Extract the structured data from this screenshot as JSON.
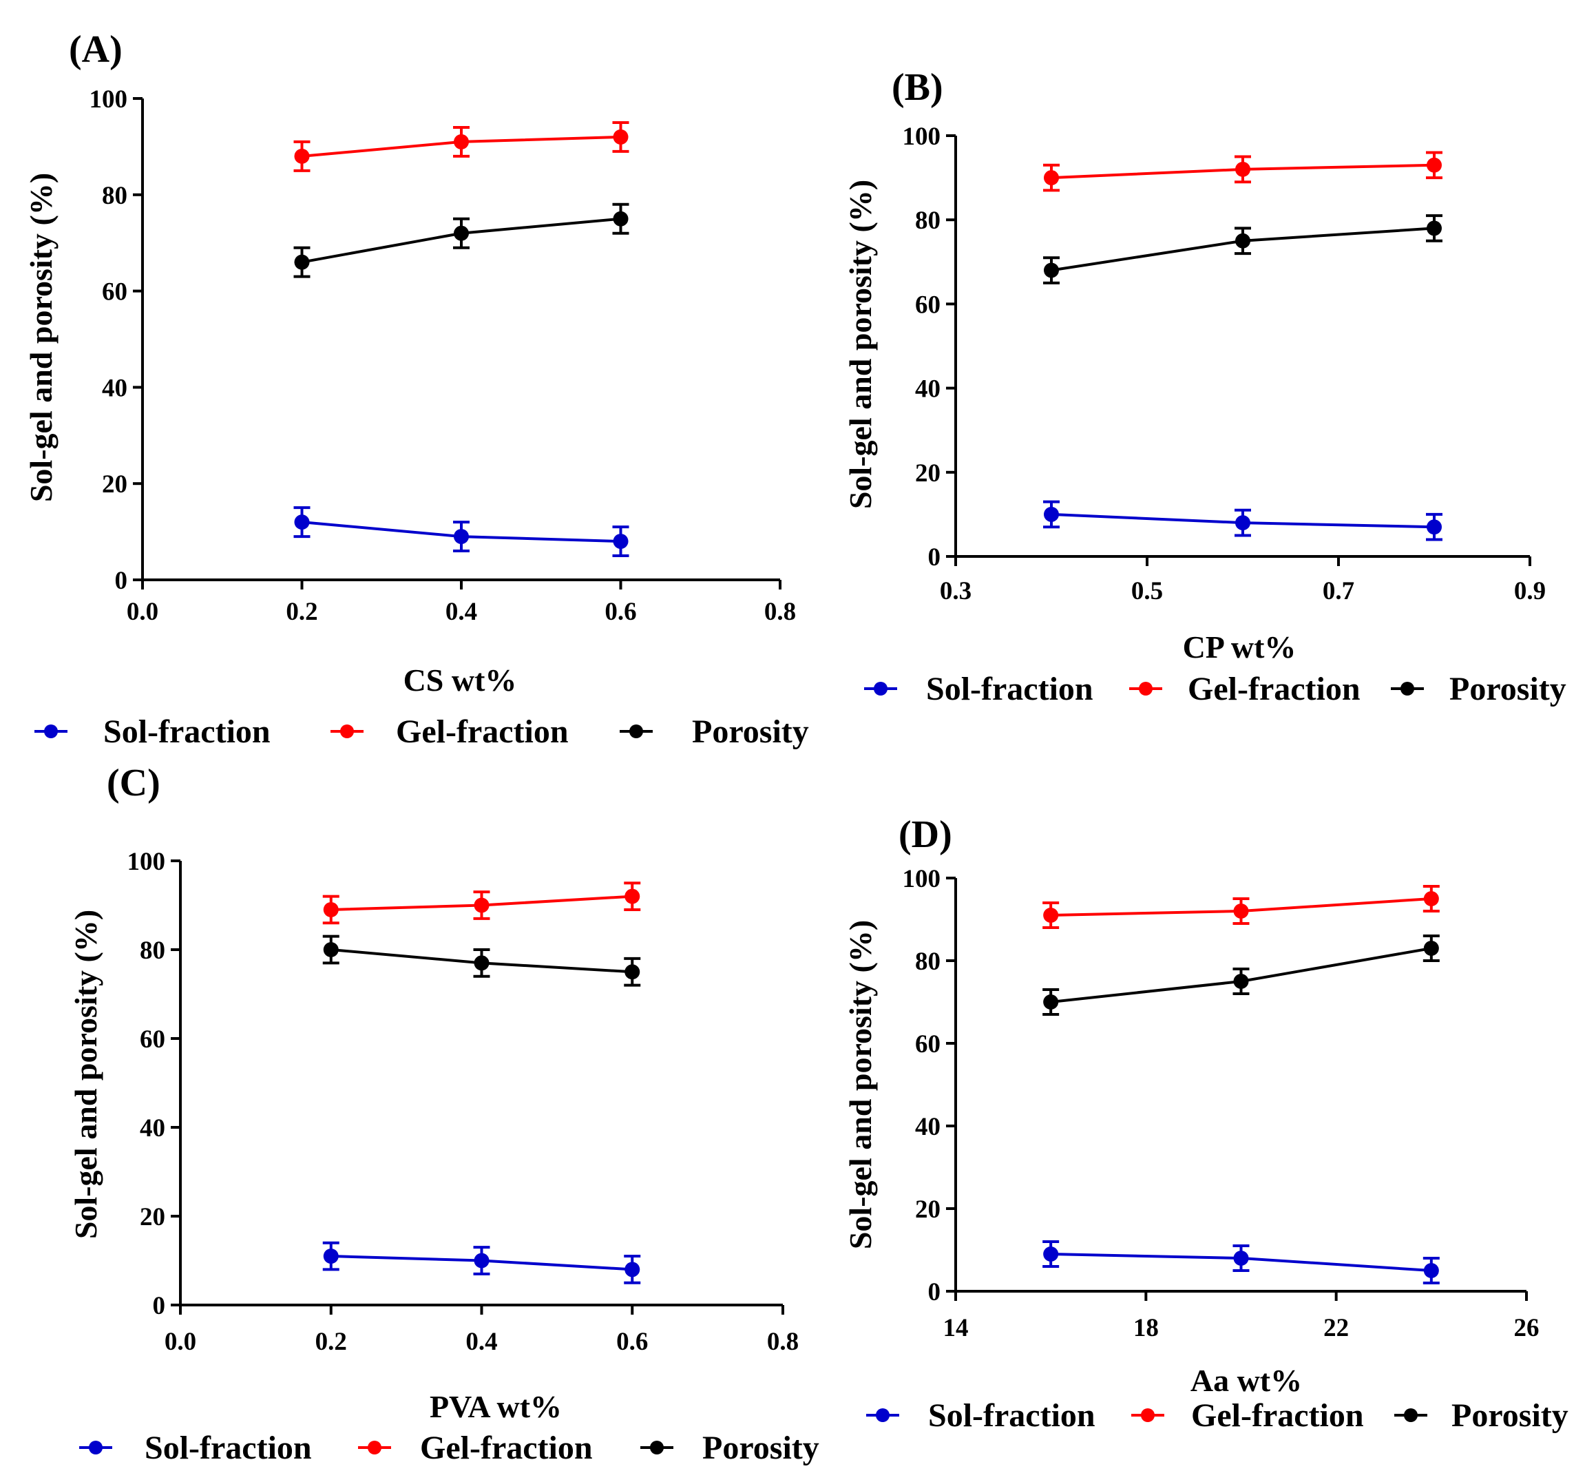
{
  "chart_data": [
    {
      "type": "line",
      "panel_label": "(A)",
      "xlabel": "CS wt%",
      "ylabel": "Sol-gel and porosity (%)",
      "xlim": [
        0.0,
        0.8
      ],
      "ylim": [
        0,
        100
      ],
      "xticks": [
        0.0,
        0.2,
        0.4,
        0.6,
        0.8
      ],
      "xtick_labels": [
        "0.0",
        "0.2",
        "0.4",
        "0.6",
        "0.8"
      ],
      "yticks": [
        0,
        20,
        40,
        60,
        80,
        100
      ],
      "ytick_labels": [
        "0",
        "20",
        "40",
        "60",
        "80",
        "100"
      ],
      "x": [
        0.2,
        0.4,
        0.6
      ],
      "series": [
        {
          "name": "Sol-fraction",
          "color": "#0000cc",
          "values": [
            12,
            9,
            8
          ],
          "errors": [
            3,
            3,
            3
          ]
        },
        {
          "name": "Gel-fraction",
          "color": "#ff0000",
          "values": [
            88,
            91,
            92
          ],
          "errors": [
            3,
            3,
            3
          ]
        },
        {
          "name": "Porosity",
          "color": "#000000",
          "values": [
            66,
            72,
            75
          ],
          "errors": [
            3,
            3,
            3
          ]
        }
      ],
      "legend_position": "bottom"
    },
    {
      "type": "line",
      "panel_label": "(B)",
      "xlabel": "CP wt%",
      "ylabel": "Sol-gel and porosity (%)",
      "xlim": [
        0.3,
        0.9
      ],
      "ylim": [
        0,
        100
      ],
      "xticks": [
        0.3,
        0.5,
        0.7,
        0.9
      ],
      "xtick_labels": [
        "0.3",
        "0.5",
        "0.7",
        "0.9"
      ],
      "yticks": [
        0,
        20,
        40,
        60,
        80,
        100
      ],
      "ytick_labels": [
        "0",
        "20",
        "40",
        "60",
        "80",
        "100"
      ],
      "x": [
        0.4,
        0.6,
        0.8
      ],
      "series": [
        {
          "name": "Sol-fraction",
          "color": "#0000cc",
          "values": [
            10,
            8,
            7
          ],
          "errors": [
            3,
            3,
            3
          ]
        },
        {
          "name": "Gel-fraction",
          "color": "#ff0000",
          "values": [
            90,
            92,
            93
          ],
          "errors": [
            3,
            3,
            3
          ]
        },
        {
          "name": "Porosity",
          "color": "#000000",
          "values": [
            68,
            75,
            78
          ],
          "errors": [
            3,
            3,
            3
          ]
        }
      ],
      "legend_position": "bottom"
    },
    {
      "type": "line",
      "panel_label": "(C)",
      "xlabel": "PVA wt%",
      "ylabel": "Sol-gel and porosity (%)",
      "xlim": [
        0.0,
        0.8
      ],
      "ylim": [
        0,
        100
      ],
      "xticks": [
        0.0,
        0.2,
        0.4,
        0.6,
        0.8
      ],
      "xtick_labels": [
        "0.0",
        "0.2",
        "0.4",
        "0.6",
        "0.8"
      ],
      "yticks": [
        0,
        20,
        40,
        60,
        80,
        100
      ],
      "ytick_labels": [
        "0",
        "20",
        "40",
        "60",
        "80",
        "100"
      ],
      "x": [
        0.2,
        0.4,
        0.6
      ],
      "series": [
        {
          "name": "Sol-fraction",
          "color": "#0000cc",
          "values": [
            11,
            10,
            8
          ],
          "errors": [
            3,
            3,
            3
          ]
        },
        {
          "name": "Gel-fraction",
          "color": "#ff0000",
          "values": [
            89,
            90,
            92
          ],
          "errors": [
            3,
            3,
            3
          ]
        },
        {
          "name": "Porosity",
          "color": "#000000",
          "values": [
            80,
            77,
            75
          ],
          "errors": [
            3,
            3,
            3
          ]
        }
      ],
      "legend_position": "bottom"
    },
    {
      "type": "line",
      "panel_label": "(D)",
      "xlabel": "Aa wt%",
      "ylabel": "Sol-gel and porosity (%)",
      "xlim": [
        14,
        26
      ],
      "ylim": [
        0,
        100
      ],
      "xticks": [
        14,
        18,
        22,
        26
      ],
      "xtick_labels": [
        "14",
        "18",
        "22",
        "26"
      ],
      "yticks": [
        0,
        20,
        40,
        60,
        80,
        100
      ],
      "ytick_labels": [
        "0",
        "20",
        "40",
        "60",
        "80",
        "100"
      ],
      "x": [
        16,
        20,
        24
      ],
      "series": [
        {
          "name": "Sol-fraction",
          "color": "#0000cc",
          "values": [
            9,
            8,
            5
          ],
          "errors": [
            3,
            3,
            3
          ]
        },
        {
          "name": "Gel-fraction",
          "color": "#ff0000",
          "values": [
            91,
            92,
            95
          ],
          "errors": [
            3,
            3,
            3
          ]
        },
        {
          "name": "Porosity",
          "color": "#000000",
          "values": [
            70,
            75,
            83
          ],
          "errors": [
            3,
            3,
            3
          ]
        }
      ],
      "legend_position": "bottom"
    }
  ]
}
